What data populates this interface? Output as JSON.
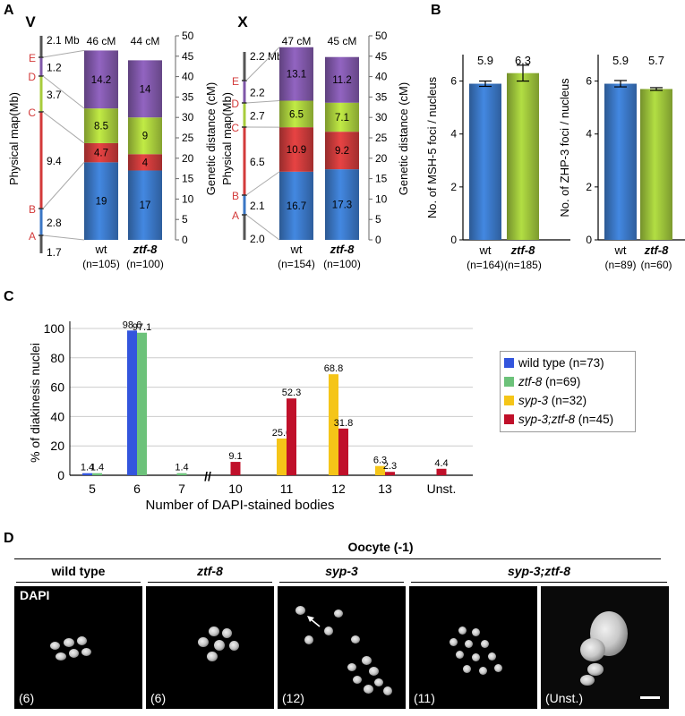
{
  "panel_letters": {
    "a": "A",
    "b": "B",
    "c": "C",
    "d": "D"
  },
  "chart_data": [
    {
      "type": "bar",
      "panel": "A",
      "chromosome": "V",
      "physical_map": {
        "ylabel": "Physical map(Mb)",
        "marker_names": [
          "E",
          "D",
          "C",
          "B",
          "A"
        ],
        "interval_labels": [
          "2.1 Mb",
          "1.2",
          "3.7",
          "9.4",
          "2.8",
          "1.7"
        ]
      },
      "genetic_axis": {
        "ylabel": "Genetic distance (cM)",
        "ylim": [
          0,
          50
        ],
        "ticks": [
          0,
          5,
          10,
          15,
          20,
          25,
          30,
          35,
          40,
          45,
          50
        ]
      },
      "categories": [
        "wt",
        "ztf-8"
      ],
      "n_labels": [
        "(n=105)",
        "(n=100)"
      ],
      "totals": [
        "46 cM",
        "44 cM"
      ],
      "series": [
        {
          "color": "#3a76c4",
          "values": [
            19,
            17
          ]
        },
        {
          "color": "#c93a3a",
          "values": [
            4.7,
            4
          ]
        },
        {
          "color": "#a8cc3c",
          "values": [
            8.5,
            9
          ]
        },
        {
          "color": "#7f57a8",
          "values": [
            14.2,
            14
          ]
        }
      ]
    },
    {
      "type": "bar",
      "panel": "A",
      "chromosome": "X",
      "physical_map": {
        "ylabel": "Physical map(Mb)",
        "marker_names": [
          "E",
          "D",
          "C",
          "B",
          "A"
        ],
        "interval_labels": [
          "2.2 Mb",
          "2.2",
          "2.7",
          "6.5",
          "2.1",
          "2.0"
        ]
      },
      "genetic_axis": {
        "ylabel": "Genetic distance (cM)",
        "ylim": [
          0,
          50
        ],
        "ticks": [
          0,
          5,
          10,
          15,
          20,
          25,
          30,
          35,
          40,
          45,
          50
        ]
      },
      "categories": [
        "wt",
        "ztf-8"
      ],
      "n_labels": [
        "(n=154)",
        "(n=100)"
      ],
      "totals": [
        "47 cM",
        "45 cM"
      ],
      "series": [
        {
          "color": "#3a76c4",
          "values": [
            16.7,
            17.3
          ]
        },
        {
          "color": "#c93a3a",
          "values": [
            10.9,
            9.2
          ]
        },
        {
          "color": "#a8cc3c",
          "values": [
            6.5,
            7.1
          ]
        },
        {
          "color": "#7f57a8",
          "values": [
            13.1,
            11.2
          ]
        }
      ]
    },
    {
      "type": "bar",
      "panel": "B",
      "ylabel": "No. of MSH-5 foci / nucleus",
      "ylim": [
        0,
        7
      ],
      "ticks": [
        0,
        2,
        4,
        6
      ],
      "categories": [
        "wt",
        "ztf-8"
      ],
      "n_labels": [
        "(n=164)",
        "(n=185)"
      ],
      "values": [
        5.9,
        6.3
      ],
      "value_labels": [
        "5.9",
        "6.3"
      ],
      "error": [
        0.1,
        0.3
      ],
      "colors": [
        "#3a76c4",
        "#9bc13a"
      ]
    },
    {
      "type": "bar",
      "panel": "B",
      "ylabel": "No. of ZHP-3 foci / nucleus",
      "ylim": [
        0,
        7
      ],
      "ticks": [
        0,
        2,
        4,
        6
      ],
      "categories": [
        "wt",
        "ztf-8"
      ],
      "n_labels": [
        "(n=89)",
        "(n=60)"
      ],
      "values": [
        5.9,
        5.7
      ],
      "value_labels": [
        "5.9",
        "5.7"
      ],
      "error": [
        0.12,
        0.05
      ],
      "colors": [
        "#3a76c4",
        "#9bc13a"
      ]
    },
    {
      "type": "bar",
      "panel": "C",
      "ylabel": "% of diakinesis nuclei",
      "xlabel": "Number of DAPI-stained bodies",
      "ylim": [
        0,
        100
      ],
      "ticks": [
        0,
        20,
        40,
        60,
        80,
        100
      ],
      "categories": [
        "5",
        "6",
        "7",
        "10",
        "11",
        "12",
        "13",
        "Unst."
      ],
      "axis_break": "//",
      "series": [
        {
          "name": "wild type (n=73)",
          "color": "#3355dd",
          "values": [
            1.4,
            98.6,
            0,
            0,
            0,
            0,
            0,
            0
          ],
          "labels": [
            "1.4",
            "98.6",
            "",
            "",
            "",
            "",
            "",
            ""
          ]
        },
        {
          "name": "ztf-8 (n=69)",
          "color": "#6cc27a",
          "values": [
            1.4,
            97.1,
            1.4,
            0,
            0,
            0,
            0,
            0
          ],
          "labels": [
            "1.4",
            "97.1",
            "1.4",
            "",
            "",
            "",
            "",
            ""
          ]
        },
        {
          "name": "syp-3 (n=32)",
          "color": "#f5c518",
          "values": [
            0,
            0,
            0,
            0,
            25.0,
            68.8,
            6.3,
            0
          ],
          "labels": [
            "",
            "",
            "",
            "",
            "25.0",
            "68.8",
            "6.3",
            ""
          ]
        },
        {
          "name": "syp-3;ztf-8 (n=45)",
          "color": "#c0102a",
          "values": [
            0,
            0,
            0,
            9.1,
            52.3,
            31.8,
            2.3,
            4.4
          ],
          "labels": [
            "",
            "",
            "",
            "9.1",
            "52.3",
            "31.8",
            "2.3",
            "4.4"
          ]
        }
      ]
    }
  ],
  "legend": [
    {
      "name": "wild type",
      "italic": false,
      "n": " (n=73)",
      "color": "#3355dd"
    },
    {
      "name": "ztf-8",
      "italic": true,
      "n": " (n=69)",
      "color": "#6cc27a"
    },
    {
      "name": "syp-3",
      "italic": true,
      "n": " (n=32)",
      "color": "#f5c518"
    },
    {
      "name": "syp-3;ztf-8",
      "italic": true,
      "n": " (n=45)",
      "color": "#c0102a"
    }
  ],
  "panel_d": {
    "title": "Oocyte (-1)",
    "stain_label": "DAPI",
    "genotypes": [
      "wild type",
      "ztf-8",
      "syp-3",
      "syp-3;ztf-8"
    ],
    "counts": [
      "(6)",
      "(6)",
      "(12)",
      "(11)",
      "(Unst.)"
    ]
  }
}
